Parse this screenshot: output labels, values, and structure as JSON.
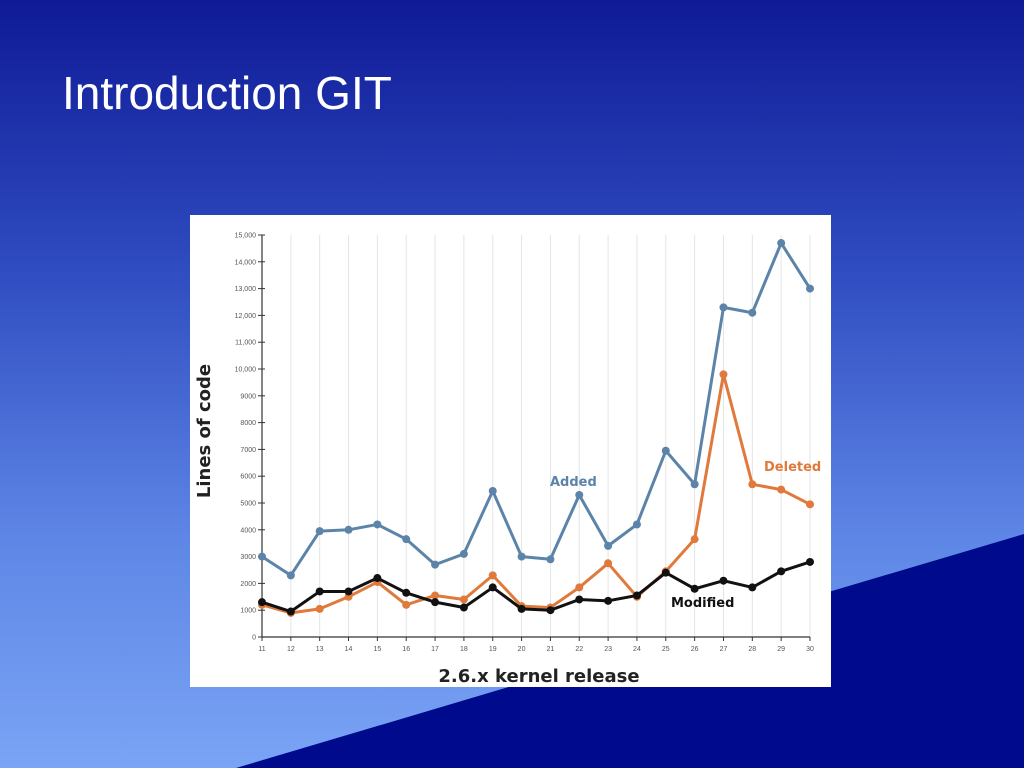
{
  "slide": {
    "title": "Introduction GIT"
  },
  "colors": {
    "added": "#5b84a8",
    "deleted": "#e07a3c",
    "modified": "#111111",
    "background_dark": "#000a8c"
  },
  "chart_data": {
    "type": "line",
    "title": "",
    "xlabel": "2.6.x kernel release",
    "ylabel": "Lines of code",
    "x": [
      "11",
      "12",
      "13",
      "14",
      "15",
      "16",
      "17",
      "18",
      "19",
      "20",
      "21",
      "22",
      "23",
      "24",
      "25",
      "26",
      "27",
      "28",
      "29",
      "30"
    ],
    "ylim": [
      0,
      15000
    ],
    "yticks": [
      0,
      1000,
      2000,
      3000,
      4000,
      5000,
      6000,
      7000,
      8000,
      9000,
      10000,
      11000,
      12000,
      13000,
      14000,
      15000
    ],
    "ytick_labels": [
      "0",
      "1000",
      "2000",
      "3000",
      "4000",
      "5000",
      "6000",
      "7000",
      "8000",
      "9000",
      "10,000",
      "11,000",
      "12,000",
      "13,000",
      "14,000",
      "15,000"
    ],
    "grid": "vertical",
    "series": [
      {
        "name": "Added",
        "color": "#5b84a8",
        "values": [
          3000,
          2300,
          3950,
          4000,
          4200,
          3650,
          2700,
          3100,
          5450,
          3000,
          2900,
          5300,
          3400,
          4200,
          6950,
          5700,
          12300,
          12100,
          14700,
          13000
        ]
      },
      {
        "name": "Deleted",
        "color": "#e07a3c",
        "values": [
          1200,
          900,
          1050,
          1500,
          2050,
          1200,
          1550,
          1400,
          2300,
          1150,
          1100,
          1850,
          2750,
          1500,
          2450,
          3650,
          9800,
          5700,
          5500,
          4950
        ]
      },
      {
        "name": "Modified",
        "color": "#111111",
        "values": [
          1300,
          950,
          1700,
          1700,
          2200,
          1650,
          1300,
          1100,
          1850,
          1050,
          1000,
          1400,
          1350,
          1550,
          2400,
          1800,
          2100,
          1850,
          2450,
          2800
        ]
      }
    ]
  }
}
